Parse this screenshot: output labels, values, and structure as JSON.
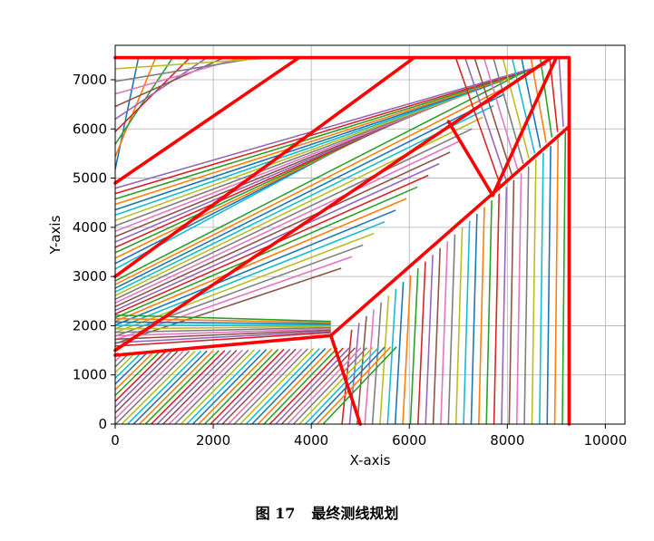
{
  "chart_data": {
    "type": "line",
    "xlabel": "X-axis",
    "ylabel": "Y-axis",
    "xlim": [
      0,
      10400
    ],
    "ylim": [
      0,
      7700
    ],
    "x_ticks": [
      "0",
      "2000",
      "4000",
      "6000",
      "8000",
      "10000"
    ],
    "y_ticks": [
      "0",
      "1000",
      "2000",
      "3000",
      "4000",
      "5000",
      "6000",
      "7000"
    ],
    "grid": true,
    "line_colors": [
      "#1f77b4",
      "#ff7f0e",
      "#2ca02c",
      "#d62728",
      "#9467bd",
      "#8c564b",
      "#e377c2",
      "#7f7f7f",
      "#bcbd22",
      "#17becf"
    ],
    "boundary_color": "#ff0000",
    "boundary_series": [
      {
        "x": [
          0,
          9260
        ],
        "y": [
          7450,
          7450
        ]
      },
      {
        "x": [
          9260,
          9260
        ],
        "y": [
          7450,
          0
        ]
      },
      {
        "x": [
          0,
          3750
        ],
        "y": [
          4900,
          7450
        ]
      },
      {
        "x": [
          0,
          6100
        ],
        "y": [
          3000,
          7450
        ]
      },
      {
        "x": [
          0,
          8900
        ],
        "y": [
          1500,
          7450
        ]
      },
      {
        "x": [
          0,
          4400
        ],
        "y": [
          1400,
          1800
        ]
      },
      {
        "x": [
          4400,
          9260
        ],
        "y": [
          1800,
          6050
        ]
      },
      {
        "x": [
          4400,
          5000
        ],
        "y": [
          1800,
          0
        ]
      },
      {
        "x": [
          6800,
          7700
        ],
        "y": [
          6150,
          4650
        ]
      },
      {
        "x": [
          7700,
          9000
        ],
        "y": [
          4650,
          7450
        ]
      }
    ]
  },
  "caption": {
    "number": "图 17",
    "text": "最终测线规划"
  }
}
